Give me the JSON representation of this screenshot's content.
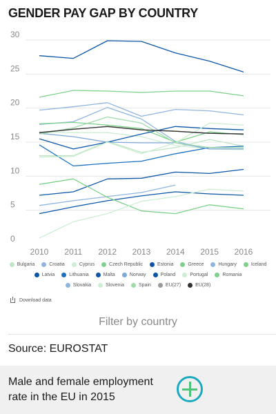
{
  "title": "GENDER PAY GAP BY COUNTRY",
  "download_label": "Download data",
  "filter_label": "Filter by country",
  "source": "Source: EUROSTAT",
  "promo": {
    "text": "Male and female employment rate in the EU in 2015",
    "icon": "plus-circle-icon"
  },
  "colors": {
    "accent": "#1aa9bf",
    "plus": "#4cc27a",
    "grid": "#e6e6e6",
    "promo_bg": "#f0f0f0"
  },
  "chart_data": {
    "type": "line",
    "x": [
      2010,
      2011,
      2012,
      2013,
      2014,
      2015,
      2016
    ],
    "ylim": [
      0,
      30
    ],
    "yticks": [
      0,
      5,
      10,
      15,
      20,
      25,
      30
    ],
    "grid": true,
    "legend": "bottom",
    "series": [
      {
        "name": "Bulgaria",
        "color": "#bfe5c4",
        "values": [
          13.0,
          13.0,
          15.1,
          13.5,
          14.2,
          15.4,
          14.4
        ]
      },
      {
        "name": "Croatia",
        "color": "#8fb4df",
        "values": [
          5.7,
          6.4,
          7.0,
          7.6,
          8.7,
          null,
          null
        ]
      },
      {
        "name": "Cyprus",
        "color": "#cdeed3",
        "values": [
          16.5,
          16.4,
          16.4,
          15.8,
          14.5,
          14.0,
          13.9
        ]
      },
      {
        "name": "Czech Republic",
        "color": "#7dd18b",
        "values": [
          21.6,
          22.6,
          22.5,
          22.3,
          22.5,
          22.5,
          21.8
        ]
      },
      {
        "name": "Estonia",
        "color": "#0b55a6",
        "values": [
          27.7,
          27.3,
          29.9,
          29.8,
          28.1,
          26.9,
          25.3
        ]
      },
      {
        "name": "Greece",
        "color": "#7dd18b",
        "values": [
          15.0,
          null,
          null,
          null,
          null,
          null,
          null
        ]
      },
      {
        "name": "Hungary",
        "color": "#8fb4df",
        "values": [
          17.6,
          18.0,
          20.1,
          18.4,
          15.1,
          14.0,
          14.0
        ]
      },
      {
        "name": "Iceland",
        "color": "#7dd18b",
        "values": [
          17.7,
          17.9,
          17.5,
          17.0,
          15.0,
          16.5,
          16.1
        ]
      },
      {
        "name": "Latvia",
        "color": "#0b55a6",
        "values": [
          15.5,
          14.0,
          15.0,
          16.2,
          17.3,
          17.0,
          16.8
        ]
      },
      {
        "name": "Lithuania",
        "color": "#1a6fbf",
        "values": [
          14.6,
          11.5,
          11.9,
          12.2,
          13.3,
          14.2,
          14.4
        ]
      },
      {
        "name": "Malta",
        "color": "#0b55a6",
        "values": [
          7.2,
          7.7,
          9.6,
          9.7,
          10.6,
          10.4,
          11.0
        ]
      },
      {
        "name": "Norway",
        "color": "#7fa9d9",
        "values": [
          16.3,
          15.8,
          15.0,
          14.9,
          14.9,
          14.0,
          14.0
        ]
      },
      {
        "name": "Poland",
        "color": "#0b55a6",
        "values": [
          4.5,
          5.5,
          6.4,
          7.1,
          7.7,
          7.4,
          7.2
        ]
      },
      {
        "name": "Portugal",
        "color": "#cdeed3",
        "values": [
          12.8,
          12.9,
          15.0,
          13.3,
          14.9,
          17.8,
          17.5
        ]
      },
      {
        "name": "Romania",
        "color": "#7dd18b",
        "values": [
          8.8,
          9.6,
          6.9,
          4.9,
          4.5,
          5.8,
          5.2
        ]
      },
      {
        "name": "Slovakia",
        "color": "#8fb4df",
        "values": [
          19.7,
          20.2,
          20.8,
          18.8,
          19.8,
          19.6,
          19.0
        ]
      },
      {
        "name": "Slovenia",
        "color": "#cdeed3",
        "values": [
          0.9,
          3.3,
          4.5,
          6.3,
          7.0,
          8.1,
          7.8
        ]
      },
      {
        "name": "Spain",
        "color": "#9fdca9",
        "values": [
          16.2,
          17.1,
          18.7,
          17.8,
          14.9,
          14.2,
          14.2
        ]
      },
      {
        "name": "EU(27)",
        "color": "#9a9a9a",
        "values": [
          16.4,
          16.9,
          17.3,
          16.8,
          16.6,
          16.3,
          16.2
        ]
      },
      {
        "name": "EU(28)",
        "color": "#333333",
        "values": [
          16.4,
          16.9,
          17.3,
          16.8,
          16.6,
          16.3,
          16.2
        ]
      }
    ]
  }
}
